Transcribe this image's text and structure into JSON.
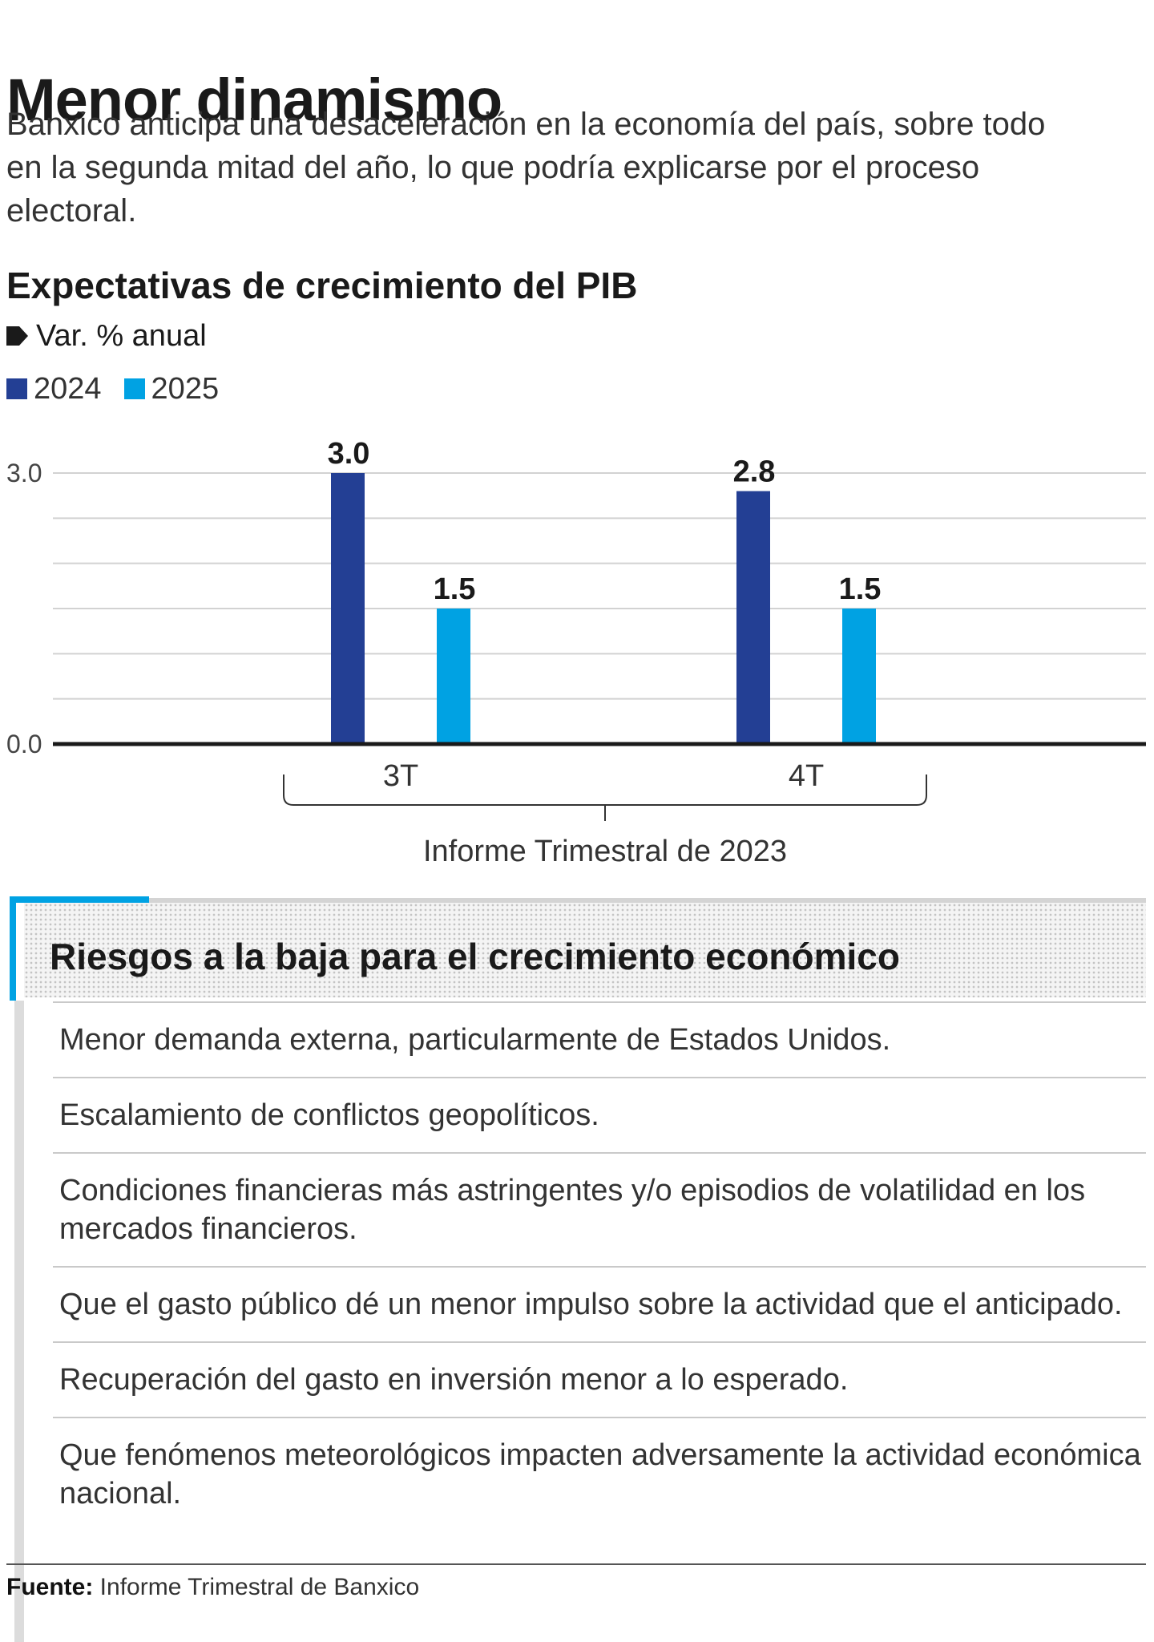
{
  "headline": "Menor dinamismo",
  "dek": "Banxico anticipa una desaceleración en la economía del país, sobre todo en la segunda mitad del año, lo que podría explicarse por el proceso electoral.",
  "colors": {
    "series_2024": "#233f94",
    "series_2025": "#00a2e3",
    "accent": "#00a2e3"
  },
  "chart_data": {
    "type": "bar",
    "title": "Expectativas de crecimiento del PIB",
    "unit_label": "Var. % anual",
    "unit_icon": "tag-marker-icon",
    "categories": [
      "3T",
      "4T"
    ],
    "category_group_label": "Informe Trimestral de 2023",
    "series": [
      {
        "name": "2024",
        "values": [
          3.0,
          2.8
        ],
        "labels": [
          "3.0",
          "2.8"
        ]
      },
      {
        "name": "2025",
        "values": [
          1.5,
          1.5
        ],
        "labels": [
          "1.5",
          "1.5"
        ]
      }
    ],
    "yticks": [
      "3.0",
      "0.0"
    ],
    "ylim": [
      0,
      3.0
    ],
    "grid": true,
    "legend": "top-left"
  },
  "risks": {
    "title": "Riesgos a la baja para el crecimiento económico",
    "items": [
      "Menor demanda externa, particularmente de Estados Unidos.",
      "Escalamiento de conflictos geopolíticos.",
      "Condiciones financieras más astringentes y/o episodios de volatilidad en los mercados financieros.",
      "Que el gasto público dé un menor impulso sobre la actividad que el anticipado.",
      "Recuperación del gasto en inversión menor a lo esperado.",
      "Que fenómenos meteorológicos impacten adversamente la actividad económica nacional."
    ]
  },
  "source": {
    "label": "Fuente:",
    "text": "Informe Trimestral de Banxico"
  }
}
